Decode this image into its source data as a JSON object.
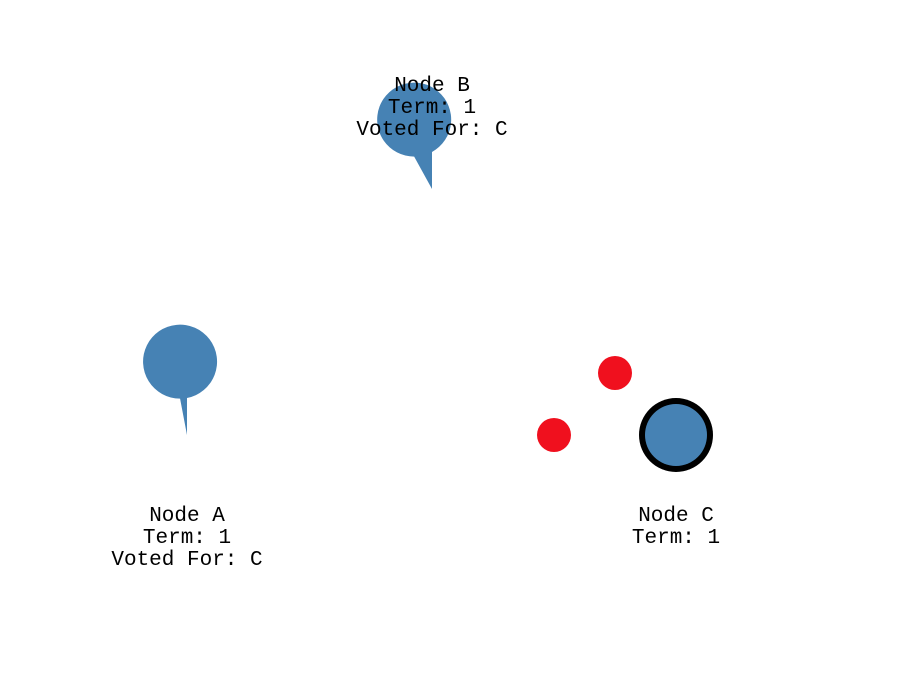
{
  "colors": {
    "node_fill": "#4682b4",
    "leader_ring": "#000000",
    "message": "#f0101e",
    "text": "#000000",
    "background": "#ffffff"
  },
  "nodes": {
    "a": {
      "name": "Node A",
      "term": "Term: 1",
      "voted_for": "Voted For: C",
      "role": "follower",
      "election_timer_remaining": 0.97
    },
    "b": {
      "name": "Node B",
      "term": "Term: 1",
      "voted_for": "Voted For: C",
      "role": "follower",
      "election_timer_remaining": 0.92
    },
    "c": {
      "name": "Node C",
      "term": "Term: 1",
      "role": "leader"
    }
  },
  "messages": [
    {
      "type": "heartbeat",
      "from": "C",
      "to": "A"
    },
    {
      "type": "heartbeat",
      "from": "C",
      "to": "B"
    }
  ]
}
